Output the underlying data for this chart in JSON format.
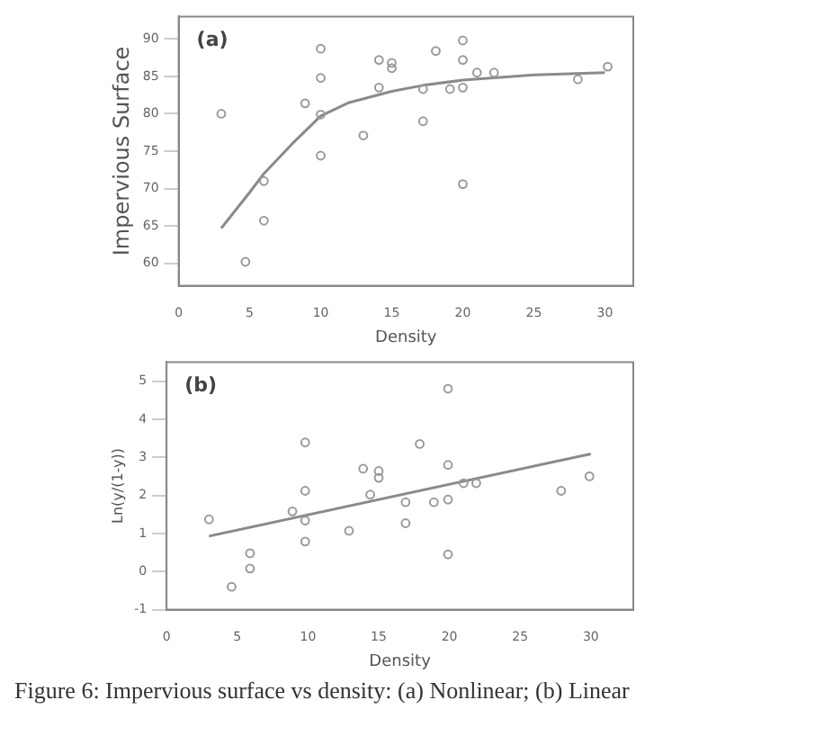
{
  "chart_data": [
    {
      "type": "scatter",
      "xlabel": "Density",
      "ylabel": "Impervious Surface",
      "annotations": [
        "(a)"
      ],
      "xlim": [
        0,
        32
      ],
      "ylim": [
        57,
        93
      ],
      "xticks": [
        0,
        5,
        10,
        15,
        20,
        25,
        30
      ],
      "yticks": [
        60,
        65,
        70,
        75,
        80,
        85,
        90
      ],
      "grid": false,
      "legend": false,
      "series": [
        {
          "marker": "circle",
          "color": "#9a9a9a",
          "x": [
            3,
            4.7,
            6,
            6,
            8.9,
            10,
            10,
            10,
            10,
            13,
            14.1,
            14.1,
            15,
            15,
            17.2,
            17.2,
            18.1,
            19.1,
            20,
            20,
            20,
            20,
            21,
            22.2,
            28.1,
            30.2
          ],
          "values": [
            80,
            60.2,
            71,
            65.7,
            81.4,
            88.7,
            84.8,
            79.9,
            74.4,
            77.1,
            87.2,
            83.5,
            86.8,
            86.1,
            83.3,
            79,
            88.4,
            83.3,
            89.8,
            87.2,
            83.5,
            70.6,
            85.5,
            85.5,
            84.6,
            86.3
          ]
        },
        {
          "type": "line",
          "color": "#8a8a8a",
          "x": [
            3,
            5,
            6,
            8,
            10,
            12,
            15,
            17.2,
            20,
            25,
            30
          ],
          "values": [
            64.7,
            69.5,
            72,
            76,
            79.7,
            81.5,
            83,
            83.8,
            84.5,
            85.2,
            85.5
          ]
        }
      ]
    },
    {
      "type": "scatter",
      "xlabel": "Density",
      "ylabel": "Ln(y/(1-y))",
      "annotations": [
        "(b)",
        "Figure 6: Impervious surface vs density:  (a) Nonlinear; (b) Linear"
      ],
      "xlim": [
        0,
        33
      ],
      "ylim": [
        -1,
        5.5
      ],
      "xticks": [
        0,
        5,
        10,
        15,
        20,
        25,
        30
      ],
      "yticks": [
        -1,
        0,
        1,
        2,
        3,
        4,
        5
      ],
      "grid": false,
      "legend": false,
      "series": [
        {
          "marker": "circle",
          "color": "#9a9a9a",
          "x": [
            3,
            4.6,
            5.9,
            5.9,
            8.9,
            9.8,
            9.8,
            9.8,
            9.8,
            12.9,
            13.9,
            14.4,
            15,
            15,
            16.9,
            16.9,
            17.9,
            18.9,
            19.9,
            19.9,
            19.9,
            19.9,
            21,
            21.9,
            27.9,
            29.9
          ],
          "values": [
            1.37,
            -0.4,
            0.48,
            0.08,
            1.58,
            3.39,
            2.12,
            1.34,
            0.79,
            1.07,
            2.7,
            2.02,
            2.64,
            2.46,
            1.82,
            1.27,
            3.35,
            1.82,
            4.8,
            2.8,
            1.89,
            0.45,
            2.32,
            2.32,
            2.12,
            2.5
          ]
        },
        {
          "type": "line",
          "color": "#8a8a8a",
          "x": [
            3,
            30
          ],
          "values": [
            0.93,
            3.09
          ]
        }
      ]
    }
  ]
}
